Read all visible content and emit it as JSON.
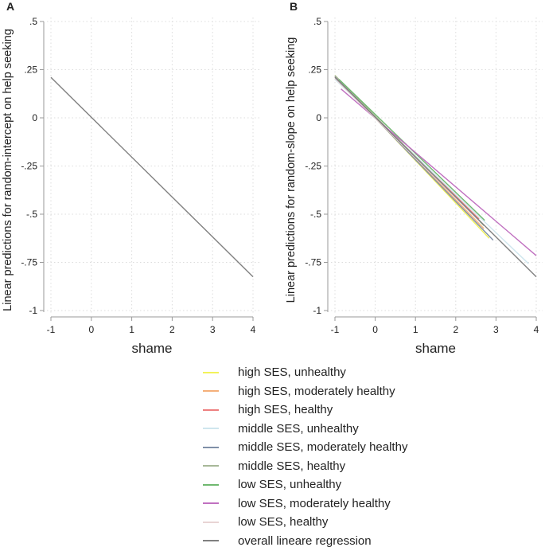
{
  "chart_data": [
    {
      "type": "line",
      "panel_label": "A",
      "xlabel": "shame",
      "ylabel": "Linear predictions for random-intercept on help seeking",
      "xlim": [
        -1,
        4
      ],
      "ylim": [
        -1,
        0.5
      ],
      "xticks": [
        "-1",
        "0",
        "1",
        "2",
        "3",
        "4"
      ],
      "yticks": [
        ".5",
        ".25",
        "0",
        "-.25",
        "-.5",
        "-.75",
        "-1"
      ],
      "grid": true,
      "series": [
        {
          "name": "overall lineare regression",
          "color": "#808080",
          "x": [
            -1,
            4
          ],
          "y": [
            0.21,
            -0.825
          ]
        }
      ]
    },
    {
      "type": "line",
      "panel_label": "B",
      "xlabel": "shame",
      "ylabel": "Linear predictions for random-slope on help seeking",
      "xlim": [
        -1,
        4
      ],
      "ylim": [
        -1,
        0.5
      ],
      "xticks": [
        "-1",
        "0",
        "1",
        "2",
        "3",
        "4"
      ],
      "yticks": [
        ".5",
        ".25",
        "0",
        "-.25",
        "-.5",
        "-.75",
        "-1"
      ],
      "grid": true,
      "series": [
        {
          "name": "high SES, unhealthy",
          "color": "#f2f25a",
          "x": [
            -1,
            2.83
          ],
          "y": [
            0.22,
            -0.625
          ]
        },
        {
          "name": "high SES, moderately healthy",
          "color": "#f5b07a",
          "x": [
            -1,
            2.7
          ],
          "y": [
            0.215,
            -0.575
          ]
        },
        {
          "name": "high SES, healthy",
          "color": "#ee8080",
          "x": [
            -1,
            2.58
          ],
          "y": [
            0.21,
            -0.525
          ]
        },
        {
          "name": "middle SES, unhealthy",
          "color": "#cfe6ee",
          "x": [
            -1,
            3.81
          ],
          "y": [
            0.2,
            -0.757
          ]
        },
        {
          "name": "middle SES, moderately healthy",
          "color": "#8090a8",
          "x": [
            -1,
            2.93
          ],
          "y": [
            0.215,
            -0.635
          ]
        },
        {
          "name": "middle SES, healthy",
          "color": "#a8b898",
          "x": [
            -1,
            2.7
          ],
          "y": [
            0.22,
            -0.56
          ]
        },
        {
          "name": "low SES, unhealthy",
          "color": "#70b870",
          "x": [
            -0.9,
            2.72
          ],
          "y": [
            0.2,
            -0.532
          ]
        },
        {
          "name": "low SES, moderately healthy",
          "color": "#c070c0",
          "x": [
            -0.85,
            4
          ],
          "y": [
            0.15,
            -0.715
          ]
        },
        {
          "name": "low SES, healthy",
          "color": "#e8d4d4",
          "x": [
            -1,
            2.6
          ],
          "y": [
            0.205,
            -0.54
          ]
        },
        {
          "name": "overall lineare regression",
          "color": "#808080",
          "x": [
            -1,
            4
          ],
          "y": [
            0.21,
            -0.825
          ]
        }
      ]
    }
  ]
}
